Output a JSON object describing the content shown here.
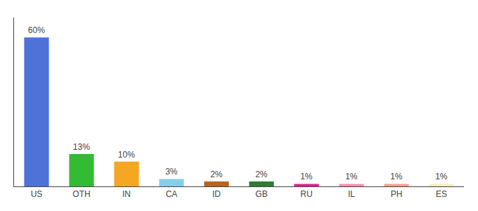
{
  "chart_data": {
    "type": "bar",
    "categories": [
      "US",
      "OTH",
      "IN",
      "CA",
      "ID",
      "GB",
      "RU",
      "IL",
      "PH",
      "ES"
    ],
    "values": [
      60,
      13,
      10,
      3,
      2,
      2,
      1,
      1,
      1,
      1
    ],
    "value_labels": [
      "60%",
      "13%",
      "10%",
      "3%",
      "2%",
      "2%",
      "1%",
      "1%",
      "1%",
      "1%"
    ],
    "colors": [
      "#4f72d9",
      "#33bb33",
      "#f5a623",
      "#87ceeb",
      "#b5651d",
      "#2e7d32",
      "#e91e8c",
      "#f48fb1",
      "#f4a090",
      "#f5f0c0"
    ],
    "ylim": [
      0,
      68
    ],
    "data_labels": true,
    "tick_labels": "x",
    "grid": false
  }
}
